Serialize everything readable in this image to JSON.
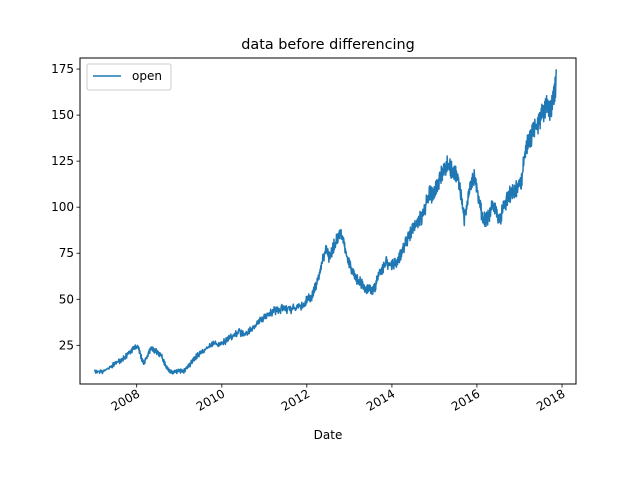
{
  "chart_data": {
    "type": "line",
    "title": "data before differencing",
    "xlabel": "Date",
    "ylabel": "",
    "x_ticks": [
      "2008",
      "2010",
      "2012",
      "2014",
      "2016",
      "2018"
    ],
    "y_ticks": [
      25,
      50,
      75,
      100,
      125,
      150,
      175
    ],
    "xlim": [
      "2006-09-01",
      "2018-05-01"
    ],
    "ylim": [
      4,
      181
    ],
    "grid": false,
    "legend": "top-left",
    "series": [
      {
        "name": "open",
        "color": "#1f77b4",
        "x": [
          "2007-01-01",
          "2007-03-01",
          "2007-05-01",
          "2007-07-01",
          "2007-09-01",
          "2007-10-15",
          "2007-12-01",
          "2008-01-15",
          "2008-02-15",
          "2008-03-01",
          "2008-04-01",
          "2008-05-01",
          "2008-06-01",
          "2008-07-01",
          "2008-08-01",
          "2008-09-01",
          "2008-10-01",
          "2008-11-01",
          "2008-12-01",
          "2009-01-01",
          "2009-02-01",
          "2009-03-01",
          "2009-04-01",
          "2009-05-01",
          "2009-06-01",
          "2009-08-01",
          "2009-10-01",
          "2009-12-01",
          "2010-02-01",
          "2010-04-01",
          "2010-06-01",
          "2010-08-01",
          "2010-10-01",
          "2010-12-01",
          "2011-02-01",
          "2011-04-01",
          "2011-06-01",
          "2011-08-01",
          "2011-10-01",
          "2011-12-01",
          "2012-01-15",
          "2012-02-15",
          "2012-03-15",
          "2012-04-15",
          "2012-05-15",
          "2012-06-15",
          "2012-07-15",
          "2012-08-15",
          "2012-09-15",
          "2012-10-15",
          "2012-11-15",
          "2012-12-15",
          "2013-01-15",
          "2013-02-15",
          "2013-03-15",
          "2013-04-15",
          "2013-05-15",
          "2013-06-15",
          "2013-07-15",
          "2013-08-15",
          "2013-09-15",
          "2013-10-15",
          "2013-11-15",
          "2013-12-15",
          "2014-01-15",
          "2014-02-15",
          "2014-03-15",
          "2014-04-15",
          "2014-05-15",
          "2014-06-15",
          "2014-07-15",
          "2014-08-15",
          "2014-09-15",
          "2014-10-15",
          "2014-11-15",
          "2014-12-15",
          "2015-01-15",
          "2015-02-15",
          "2015-03-15",
          "2015-04-15",
          "2015-05-15",
          "2015-06-15",
          "2015-07-15",
          "2015-08-15",
          "2015-09-15",
          "2015-10-15",
          "2015-11-15",
          "2015-12-15",
          "2016-01-15",
          "2016-02-15",
          "2016-03-15",
          "2016-04-15",
          "2016-05-15",
          "2016-06-15",
          "2016-07-15",
          "2016-08-15",
          "2016-09-15",
          "2016-10-15",
          "2016-11-15",
          "2016-12-15",
          "2017-01-15",
          "2017-02-15",
          "2017-03-15",
          "2017-04-15",
          "2017-05-15",
          "2017-06-15",
          "2017-07-15",
          "2017-08-15",
          "2017-09-15",
          "2017-10-15",
          "2017-11-15"
        ],
        "values": [
          12,
          11,
          13,
          16,
          18,
          21,
          24,
          25,
          18,
          16,
          20,
          24,
          23,
          22,
          20,
          15,
          12,
          11,
          11,
          12,
          11,
          13,
          15,
          18,
          20,
          23,
          26,
          27,
          28,
          31,
          33,
          32,
          36,
          40,
          43,
          45,
          46,
          45,
          47,
          48,
          52,
          53,
          58,
          65,
          74,
          78,
          74,
          80,
          84,
          88,
          82,
          74,
          68,
          64,
          62,
          60,
          57,
          58,
          56,
          59,
          66,
          68,
          72,
          70,
          71,
          71,
          76,
          80,
          85,
          88,
          92,
          95,
          97,
          103,
          110,
          109,
          113,
          118,
          122,
          126,
          125,
          120,
          122,
          110,
          96,
          107,
          115,
          119,
          107,
          97,
          95,
          97,
          103,
          99,
          95,
          102,
          106,
          110,
          112,
          113,
          116,
          132,
          140,
          142,
          145,
          148,
          154,
          158,
          156,
          160,
          174
        ]
      }
    ]
  }
}
